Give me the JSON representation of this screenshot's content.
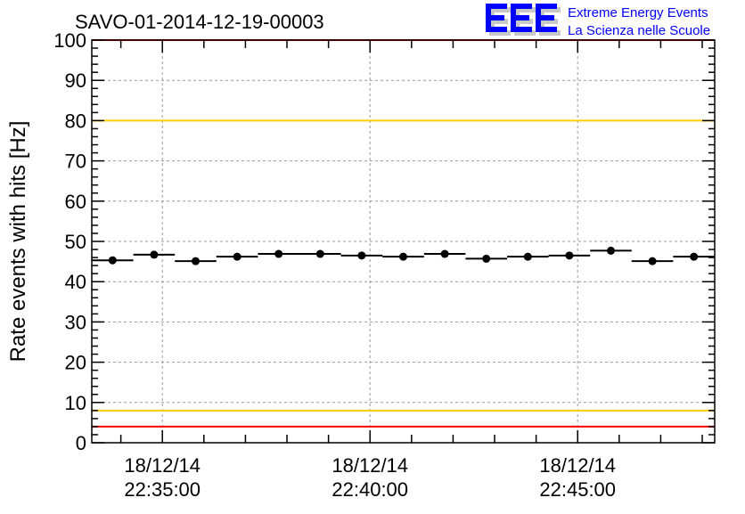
{
  "chart_data": {
    "type": "scatter",
    "title": "SAVO-01-2014-12-19-00003",
    "ylabel": "Rate events with hits [Hz]",
    "xlabel": "",
    "ylim": [
      0,
      100
    ],
    "xlim_minutes_from_2235": [
      -1.7,
      13.3
    ],
    "yticks": [
      0,
      10,
      20,
      30,
      40,
      50,
      60,
      70,
      80,
      90,
      100
    ],
    "xticks": [
      {
        "minute": 0,
        "date": "18/12/14",
        "time": "22:35:00"
      },
      {
        "minute": 5,
        "date": "18/12/14",
        "time": "22:40:00"
      },
      {
        "minute": 10,
        "date": "18/12/14",
        "time": "22:45:00"
      }
    ],
    "bin_width_minutes": 1,
    "x": [
      -1.2,
      -0.2,
      0.8,
      1.8,
      2.8,
      3.8,
      4.8,
      5.8,
      6.8,
      7.8,
      8.8,
      9.8,
      10.8,
      11.8,
      12.8
    ],
    "values": [
      45.3,
      46.7,
      45.1,
      46.2,
      46.9,
      46.9,
      46.5,
      46.2,
      46.9,
      45.7,
      46.2,
      46.5,
      47.7,
      45.1,
      46.2
    ],
    "reference_lines": [
      {
        "value": 100,
        "color": "#ff0000"
      },
      {
        "value": 4,
        "color": "#ff0000"
      },
      {
        "value": 80,
        "color": "#ffcc00"
      },
      {
        "value": 8,
        "color": "#ffcc00"
      }
    ],
    "grid": true
  },
  "logo": {
    "mark": "EEE",
    "line1": "Extreme Energy Events",
    "line2": "La Scienza nelle Scuole",
    "color": "#0000ff"
  }
}
